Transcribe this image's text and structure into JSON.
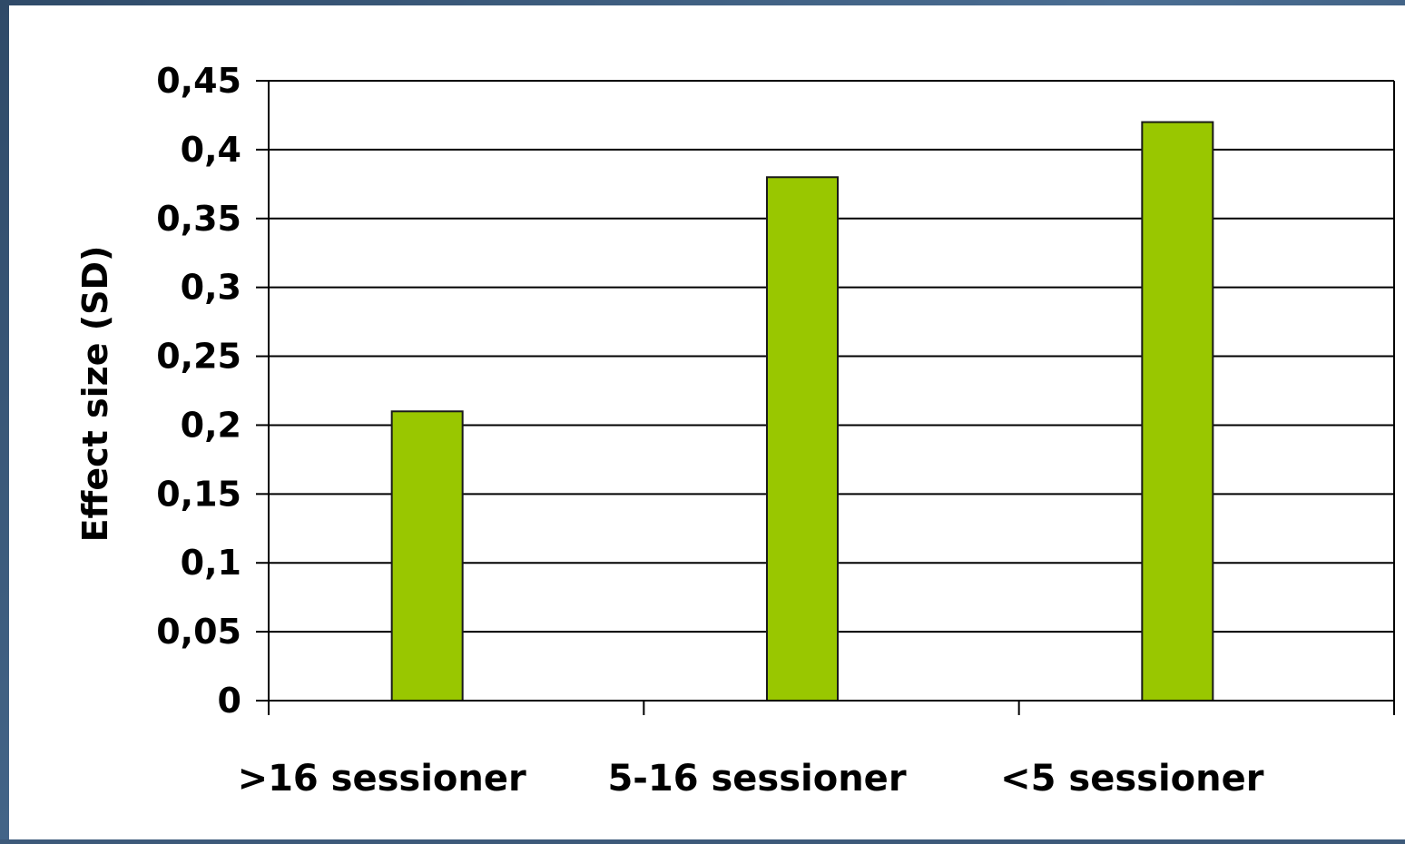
{
  "chart_data": {
    "type": "bar",
    "categories": [
      ">16 sessioner",
      "5-16 sessioner",
      "<5 sessioner"
    ],
    "values": [
      0.21,
      0.38,
      0.42
    ],
    "ylabel": "Effect size (SD)",
    "xlabel": "",
    "title": "",
    "ylim": [
      0,
      0.45
    ],
    "ytick_labels": [
      "0",
      "0,05",
      "0,1",
      "0,15",
      "0,2",
      "0,25",
      "0,3",
      "0,35",
      "0,4",
      "0,45"
    ],
    "grid": true,
    "legend": "none",
    "colors": {
      "bar_fill": "#99c700",
      "bar_stroke": "#1a1a1a",
      "grid": "#000000",
      "background": "#ffffff"
    }
  }
}
